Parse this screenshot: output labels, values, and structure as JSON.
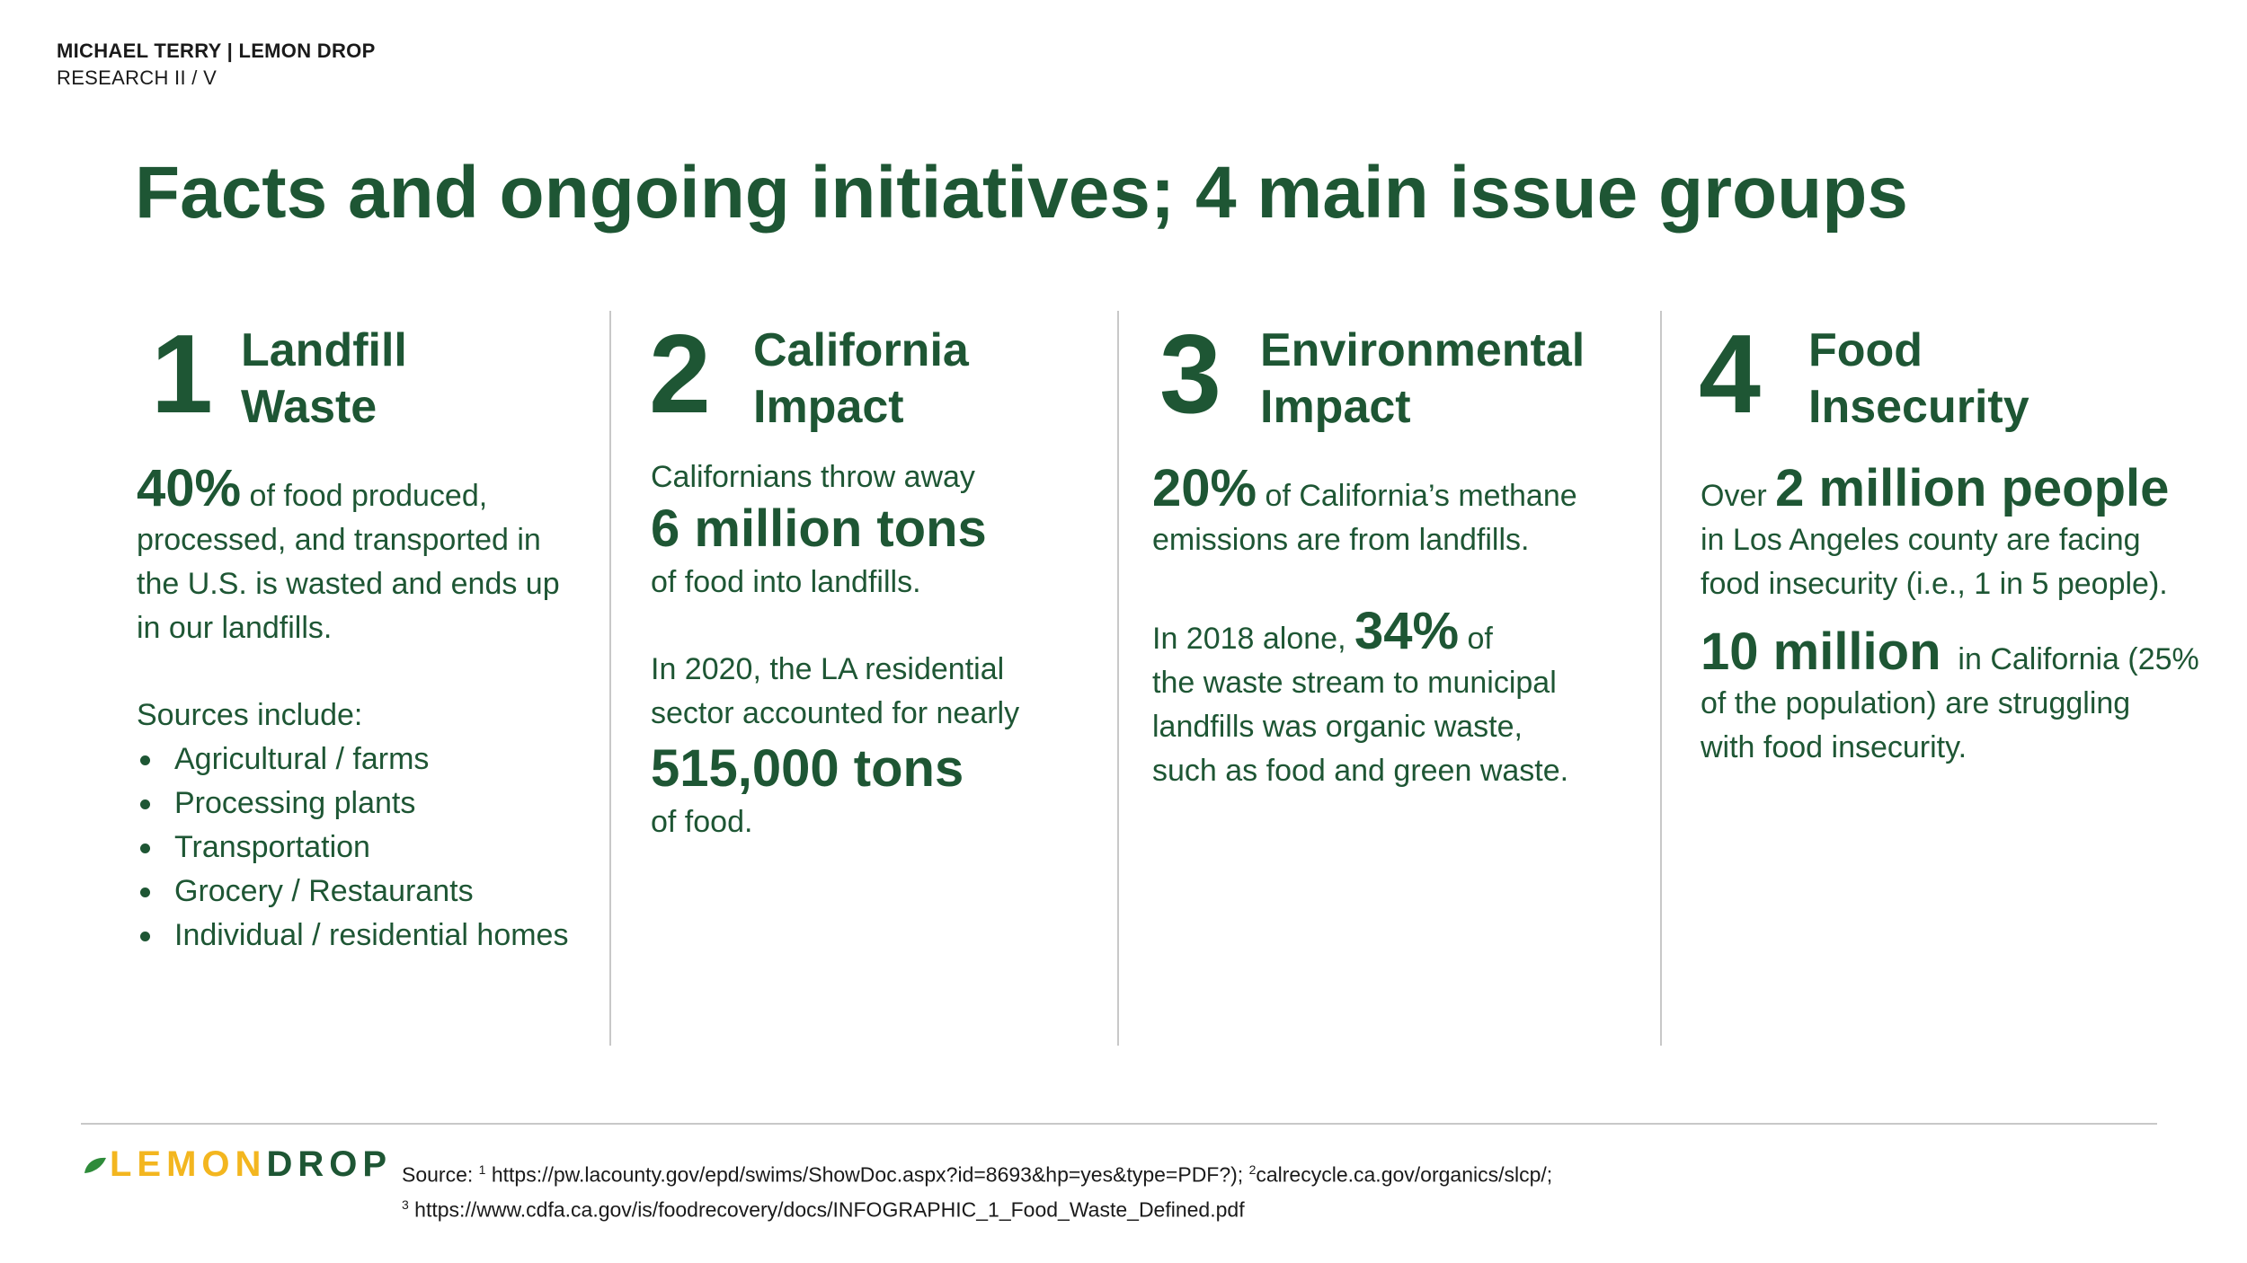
{
  "header": {
    "author_line": "MICHAEL TERRY | LEMON DROP",
    "section_line": "RESEARCH II / V"
  },
  "title": "Facts and ongoing initiatives; 4 main issue groups",
  "columns": [
    {
      "number": "1",
      "heading_line1": "Landfill",
      "heading_line2": "Waste",
      "stat": "40%",
      "stat_rest": " of food produced,",
      "lines": [
        "processed, and transported in",
        "the U.S. is wasted and ends up",
        "in our landfills."
      ],
      "sources_label": "Sources include:",
      "bullets": [
        "Agricultural / farms",
        "Processing plants",
        "Transportation",
        "Grocery / Restaurants",
        "Individual / residential homes"
      ]
    },
    {
      "number": "2",
      "heading_line1": "California",
      "heading_line2": "Impact",
      "intro": "Californians throw away",
      "stat1": "6 million tons",
      "after_stat1": "of food into landfills.",
      "para2_line1": "In 2020, the LA residential",
      "para2_line2": "sector accounted for nearly",
      "stat2": "515,000 tons",
      "after_stat2": "of food."
    },
    {
      "number": "3",
      "heading_line1": "Environmental",
      "heading_line2": "Impact",
      "stat1": "20%",
      "stat1_rest": " of California’s methane",
      "stat1_line2": "emissions are from landfills.",
      "para2_pre": "In 2018 alone, ",
      "stat2": "34%",
      "stat2_rest": " of",
      "para2_lines": [
        "the waste stream to municipal",
        "landfills was organic waste,",
        "such as food and green waste."
      ]
    },
    {
      "number": "4",
      "heading_line1": "Food",
      "heading_line2": "Insecurity",
      "pre1": "Over ",
      "stat1": "2 million people",
      "lines1": [
        "in Los Angeles county are facing",
        "food insecurity (i.e., 1 in 5 people)."
      ],
      "stat2": "10 million",
      "stat2_rest": "  in California (25%",
      "lines2": [
        "of the population) are struggling",
        "with food insecurity."
      ]
    }
  ],
  "footer": {
    "logo_lemon": "LEMON",
    "logo_drop": "DROP",
    "source_label": "Source: ",
    "sup1": "1",
    "source1": " https://pw.lacounty.gov/epd/swims/ShowDoc.aspx?id=8693&hp=yes&type=PDF?); ",
    "sup2": "2",
    "source2": "calrecycle.ca.gov/organics/slcp/;",
    "sup3": "3",
    "source3": " https://www.cdfa.ca.gov/is/foodrecovery/docs/INFOGRAPHIC_1_Food_Waste_Defined.pdf"
  },
  "colors": {
    "brand_green": "#1e5634",
    "brand_yellow": "#f3b61f",
    "divider": "#c8c8c8"
  }
}
